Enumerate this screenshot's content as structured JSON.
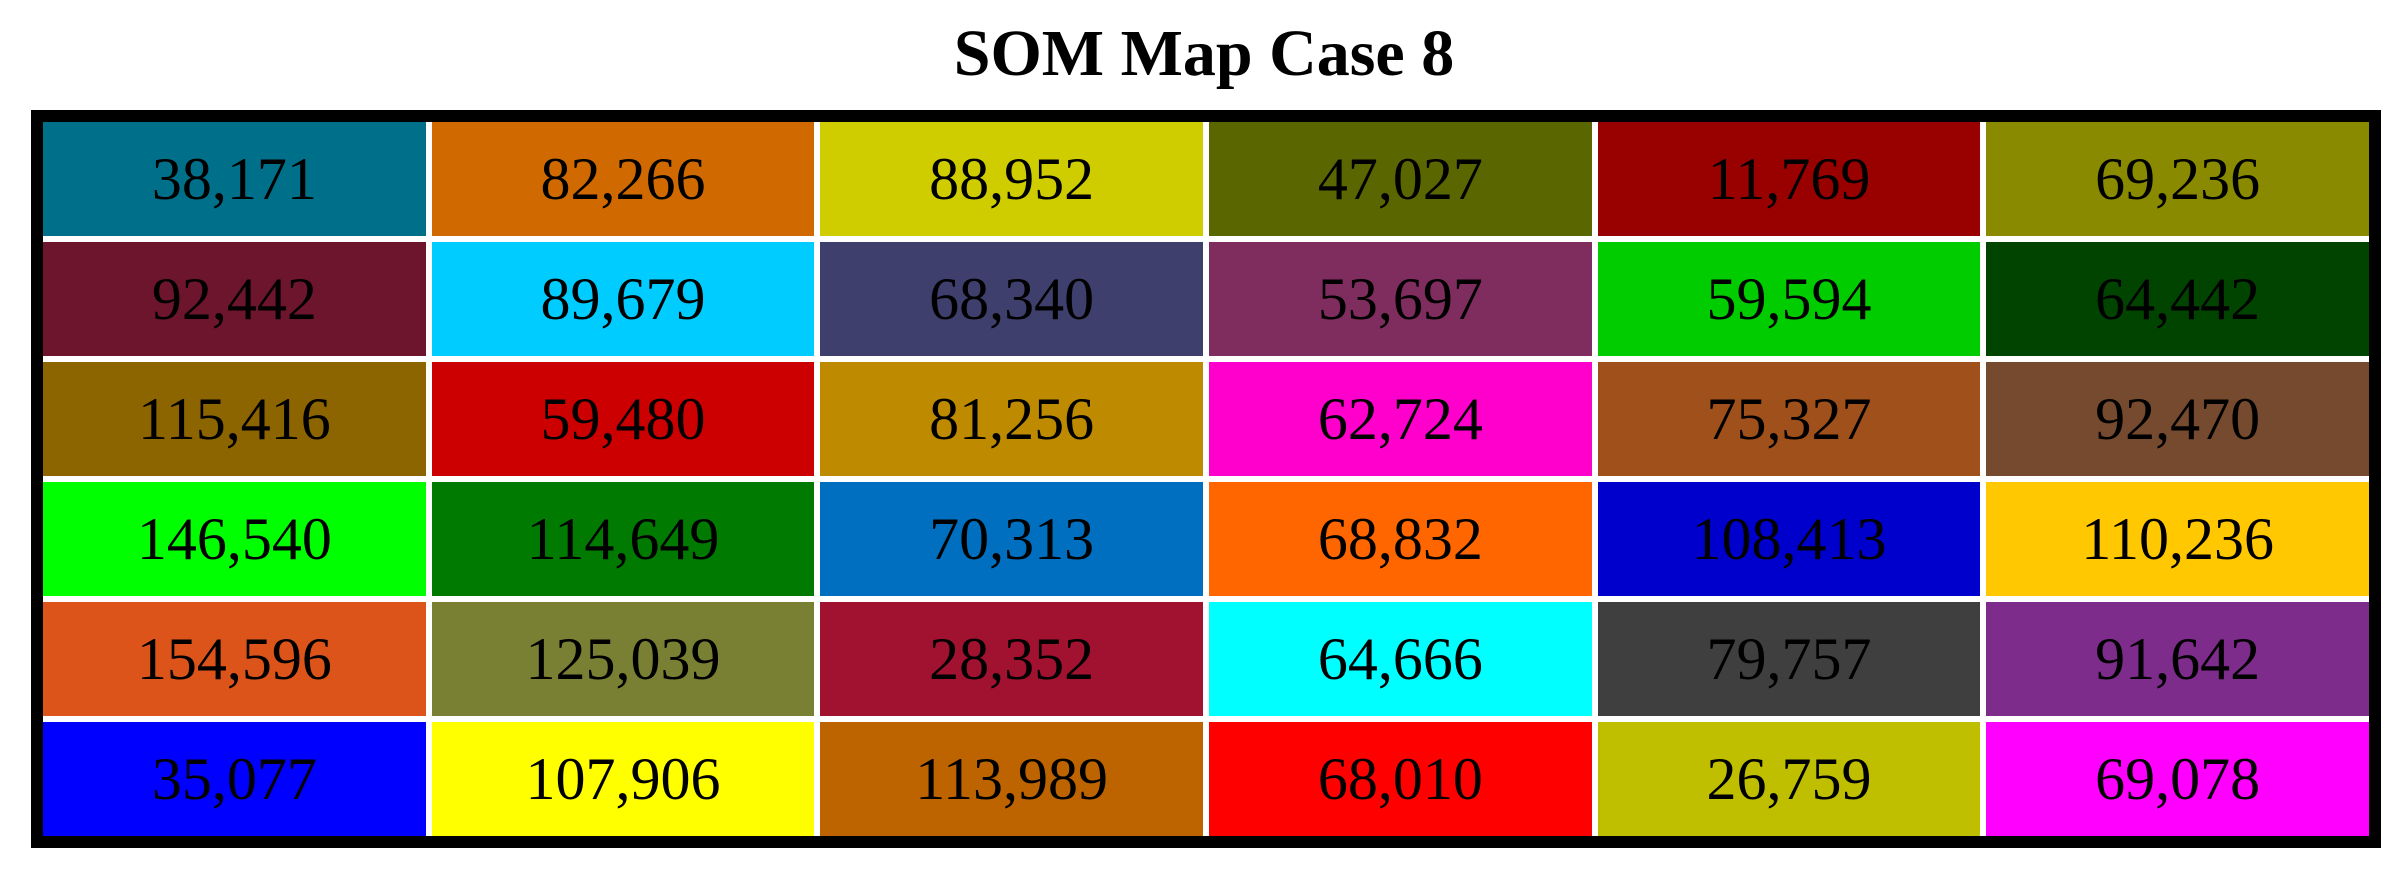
{
  "title": "SOM Map Case 8",
  "grid": {
    "rows": [
      [
        {
          "text": "38,171",
          "color": "#00708a"
        },
        {
          "text": "82,266",
          "color": "#d06a00"
        },
        {
          "text": "88,952",
          "color": "#cfcc00"
        },
        {
          "text": "47,027",
          "color": "#5a6600"
        },
        {
          "text": "11,769",
          "color": "#990000"
        },
        {
          "text": "69,236",
          "color": "#8a8a00"
        }
      ],
      [
        {
          "text": "92,442",
          "color": "#6e152e"
        },
        {
          "text": "89,679",
          "color": "#00ccff"
        },
        {
          "text": "68,340",
          "color": "#3f3f6e"
        },
        {
          "text": "53,697",
          "color": "#7e2d5e"
        },
        {
          "text": "59,594",
          "color": "#00cc00"
        },
        {
          "text": "64,442",
          "color": "#004400"
        }
      ],
      [
        {
          "text": "115,416",
          "color": "#8c6400"
        },
        {
          "text": "59,480",
          "color": "#cc0000"
        },
        {
          "text": "81,256",
          "color": "#be8a00"
        },
        {
          "text": "62,724",
          "color": "#ff00cc"
        },
        {
          "text": "75,327",
          "color": "#a0501a"
        },
        {
          "text": "92,470",
          "color": "#754a2e"
        }
      ],
      [
        {
          "text": "146,540",
          "color": "#00ff00"
        },
        {
          "text": "114,649",
          "color": "#007a00"
        },
        {
          "text": "70,313",
          "color": "#006fbf"
        },
        {
          "text": "68,832",
          "color": "#ff6600"
        },
        {
          "text": "108,413",
          "color": "#0000cc"
        },
        {
          "text": "110,236",
          "color": "#ffc800"
        }
      ],
      [
        {
          "text": "154,596",
          "color": "#dc541a"
        },
        {
          "text": "125,039",
          "color": "#7a8033"
        },
        {
          "text": "28,352",
          "color": "#a0122f"
        },
        {
          "text": "64,666",
          "color": "#00ffff"
        },
        {
          "text": "79,757",
          "color": "#3f3f3f"
        },
        {
          "text": "91,642",
          "color": "#7d2c8c"
        }
      ],
      [
        {
          "text": "35,077",
          "color": "#0000ff"
        },
        {
          "text": "107,906",
          "color": "#ffff00"
        },
        {
          "text": "113,989",
          "color": "#bd6400"
        },
        {
          "text": "68,010",
          "color": "#ff0000"
        },
        {
          "text": "26,759",
          "color": "#bfbf00"
        },
        {
          "text": "69,078",
          "color": "#ff00ff"
        }
      ]
    ]
  }
}
